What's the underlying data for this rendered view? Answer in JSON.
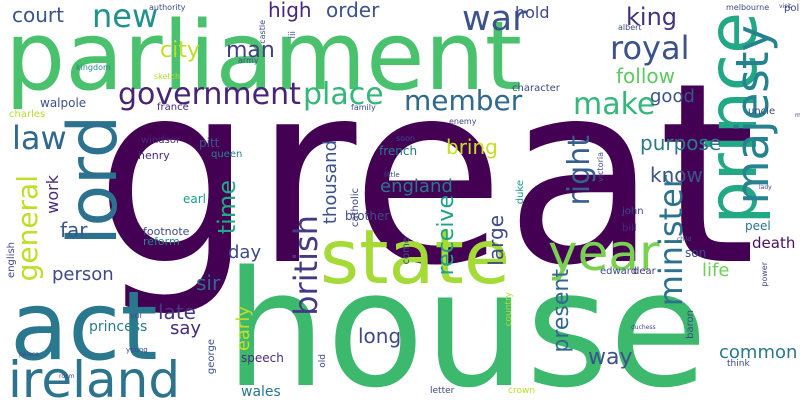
{
  "words": [
    {
      "id": "great",
      "text": "great",
      "color": "#440154"
    },
    {
      "id": "house",
      "text": "house",
      "color": "#3db96e"
    },
    {
      "id": "parliament",
      "text": "parliament",
      "color": "#4ac16d"
    },
    {
      "id": "act",
      "text": "act",
      "color": "#2a788e"
    },
    {
      "id": "state",
      "text": "state",
      "color": "#a5db36"
    },
    {
      "id": "prince",
      "text": "prince",
      "color": "#22a884"
    },
    {
      "id": "lord",
      "text": "lord",
      "color": "#2c728e"
    },
    {
      "id": "ireland",
      "text": "ireland",
      "color": "#2c738e"
    },
    {
      "id": "majesty",
      "text": "majesty",
      "color": "#26828e"
    },
    {
      "id": "year",
      "text": "year",
      "color": "#7ad151"
    },
    {
      "id": "government",
      "text": "government",
      "color": "#482475"
    },
    {
      "id": "war",
      "text": "war",
      "color": "#3b528b"
    },
    {
      "id": "royal",
      "text": "royal",
      "color": "#3b528b"
    },
    {
      "id": "new",
      "text": "new",
      "color": "#21918c"
    },
    {
      "id": "place",
      "text": "place",
      "color": "#35b779"
    },
    {
      "id": "member",
      "text": "member",
      "color": "#31688e"
    },
    {
      "id": "make",
      "text": "make",
      "color": "#35b779"
    },
    {
      "id": "british",
      "text": "british",
      "color": "#443a83"
    },
    {
      "id": "minister",
      "text": "minister",
      "color": "#2c728e"
    },
    {
      "id": "general",
      "text": "general",
      "color": "#bddf26"
    },
    {
      "id": "law",
      "text": "law",
      "color": "#31688e"
    },
    {
      "id": "time",
      "text": "time",
      "color": "#22a884"
    },
    {
      "id": "right",
      "text": "right",
      "color": "#355f8d"
    },
    {
      "id": "king",
      "text": "king",
      "color": "#46337e"
    },
    {
      "id": "court",
      "text": "court",
      "color": "#3b528b"
    },
    {
      "id": "high",
      "text": "high",
      "color": "#482878"
    },
    {
      "id": "order",
      "text": "order",
      "color": "#3b528b"
    },
    {
      "id": "hold",
      "text": "hold",
      "color": "#3e4989"
    },
    {
      "id": "city",
      "text": "city",
      "color": "#bddf26"
    },
    {
      "id": "man",
      "text": "man",
      "color": "#433e85"
    },
    {
      "id": "follow",
      "text": "follow",
      "color": "#5ec962"
    },
    {
      "id": "good",
      "text": "good",
      "color": "#3b528b"
    },
    {
      "id": "thousand",
      "text": "thousand",
      "color": "#3b528b"
    },
    {
      "id": "england",
      "text": "england",
      "color": "#2a788e"
    },
    {
      "id": "purpose",
      "text": "purpose",
      "color": "#2a788e"
    },
    {
      "id": "know",
      "text": "know",
      "color": "#3b528b"
    },
    {
      "id": "bring",
      "text": "bring",
      "color": "#c8e020"
    },
    {
      "id": "work",
      "text": "work",
      "color": "#482878"
    },
    {
      "id": "far",
      "text": "far",
      "color": "#38598c"
    },
    {
      "id": "person",
      "text": "person",
      "color": "#3e4989"
    },
    {
      "id": "day",
      "text": "day",
      "color": "#3e4989"
    },
    {
      "id": "sir",
      "text": "sir",
      "color": "#31688e"
    },
    {
      "id": "late",
      "text": "late",
      "color": "#453781"
    },
    {
      "id": "say",
      "text": "say",
      "color": "#482878"
    },
    {
      "id": "receive",
      "text": "receive",
      "color": "#1fa188"
    },
    {
      "id": "large",
      "text": "large",
      "color": "#3e4989"
    },
    {
      "id": "long",
      "text": "long",
      "color": "#3e4989"
    },
    {
      "id": "present",
      "text": "present",
      "color": "#31688e"
    },
    {
      "id": "early",
      "text": "early",
      "color": "#c2df23"
    },
    {
      "id": "way",
      "text": "way",
      "color": "#3b528b"
    },
    {
      "id": "common",
      "text": "common",
      "color": "#2a788e"
    },
    {
      "id": "life",
      "text": "life",
      "color": "#6ece58"
    },
    {
      "id": "death",
      "text": "death",
      "color": "#471063"
    },
    {
      "id": "princess",
      "text": "princess",
      "color": "#287d8e"
    },
    {
      "id": "wales",
      "text": "wales",
      "color": "#2a788e"
    },
    {
      "id": "speech",
      "text": "speech",
      "color": "#472d7b"
    },
    {
      "id": "george",
      "text": "george",
      "color": "#3b528b"
    },
    {
      "id": "henry",
      "text": "henry",
      "color": "#482878"
    },
    {
      "id": "reform",
      "text": "reform",
      "color": "#26828e"
    },
    {
      "id": "footnote",
      "text": "footnote",
      "color": "#3e4989"
    },
    {
      "id": "earl",
      "text": "earl",
      "color": "#1e9b8a"
    },
    {
      "id": "pitt",
      "text": "pitt",
      "color": "#3b528b"
    },
    {
      "id": "queen",
      "text": "queen",
      "color": "#26828e"
    },
    {
      "id": "windsor",
      "text": "windsor",
      "color": "#482878"
    },
    {
      "id": "french",
      "text": "french",
      "color": "#2a788e"
    },
    {
      "id": "catholic",
      "text": "catholic",
      "color": "#3e4989"
    },
    {
      "id": "brother",
      "text": "brother",
      "color": "#3e4989"
    },
    {
      "id": "duke",
      "text": "duke",
      "color": "#1e9b8a"
    },
    {
      "id": "bill",
      "text": "bill",
      "color": "#482878"
    },
    {
      "id": "john",
      "text": "john",
      "color": "#3e4989"
    },
    {
      "id": "son",
      "text": "son",
      "color": "#3e4989"
    },
    {
      "id": "peel",
      "text": "peel",
      "color": "#2c728e"
    },
    {
      "id": "edward",
      "text": "edward",
      "color": "#3e4989"
    },
    {
      "id": "dear",
      "text": "dear",
      "color": "#46337e"
    },
    {
      "id": "baron",
      "text": "baron",
      "color": "#3e4989"
    },
    {
      "id": "uncle",
      "text": "uncle",
      "color": "#3e4989"
    },
    {
      "id": "charles",
      "text": "charles",
      "color": "#b5de2b"
    },
    {
      "id": "walpole",
      "text": "walpole",
      "color": "#3b528b"
    },
    {
      "id": "france",
      "text": "france",
      "color": "#482878"
    },
    {
      "id": "character",
      "text": "character",
      "color": "#3e4989"
    },
    {
      "id": "english",
      "text": "english",
      "color": "#3e4989"
    },
    {
      "id": "authority",
      "text": "authority",
      "color": "#3e4989"
    },
    {
      "id": "castle",
      "text": "castle",
      "color": "#3e4989"
    },
    {
      "id": "iii",
      "text": "iii",
      "color": "#3e4989"
    },
    {
      "id": "army",
      "text": "army",
      "color": "#3e4989"
    },
    {
      "id": "albert",
      "text": "albert",
      "color": "#3e4989"
    },
    {
      "id": "melbourne",
      "text": "melbourne",
      "color": "#3e4989"
    },
    {
      "id": "policy",
      "text": "policy",
      "color": "#3e4989"
    },
    {
      "id": "sketch",
      "text": "sketch",
      "color": "#b5de2b"
    },
    {
      "id": "kingdom",
      "text": "kingdom",
      "color": "#26828e"
    },
    {
      "id": "family",
      "text": "family",
      "color": "#3e4989"
    },
    {
      "id": "enemy",
      "text": "enemy",
      "color": "#3e4989"
    },
    {
      "id": "soon",
      "text": "soon",
      "color": "#3e4989"
    },
    {
      "id": "victoria",
      "text": "victoria",
      "color": "#3e4989"
    },
    {
      "id": "little",
      "text": "little",
      "color": "#3e4989"
    },
    {
      "id": "come",
      "text": "come",
      "color": "#3e4989"
    },
    {
      "id": "country",
      "text": "country",
      "color": "#b5de2b"
    },
    {
      "id": "crown",
      "text": "crown",
      "color": "#b5de2b"
    },
    {
      "id": "letter",
      "text": "letter",
      "color": "#3e4989"
    },
    {
      "id": "old",
      "text": "old",
      "color": "#3e4989"
    },
    {
      "id": "vol",
      "text": "vol",
      "color": "#3e4989"
    },
    {
      "id": "young",
      "text": "young",
      "color": "#3e4989"
    },
    {
      "id": "think",
      "text": "think",
      "color": "#3e4989"
    },
    {
      "id": "power",
      "text": "power",
      "color": "#3e4989"
    },
    {
      "id": "child",
      "text": "child",
      "color": "#3e4989"
    },
    {
      "id": "lady",
      "text": "lady",
      "color": "#3e4989"
    },
    {
      "id": "duchess",
      "text": "duchess",
      "color": "#3e4989"
    },
    {
      "id": "palace",
      "text": "palace",
      "color": "#3e4989"
    },
    {
      "id": "room",
      "text": "room",
      "color": "#3e4989"
    },
    {
      "id": "mother",
      "text": "mother",
      "color": "#3e4989"
    },
    {
      "id": "visit",
      "text": "visit",
      "color": "#3e4989"
    }
  ]
}
